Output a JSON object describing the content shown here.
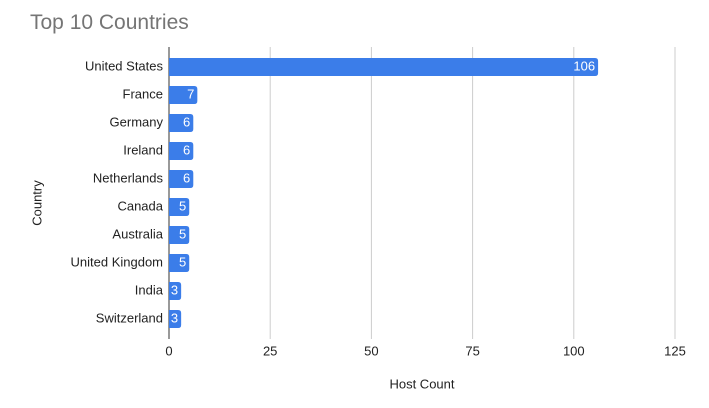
{
  "chart_data": {
    "type": "hbar",
    "title": "Top 10 Countries",
    "x_label": "Host Count",
    "y_label": "Country",
    "categories": [
      "United States",
      "France",
      "Germany",
      "Ireland",
      "Netherlands",
      "Canada",
      "Australia",
      "United Kingdom",
      "India",
      "Switzerland"
    ],
    "values": [
      106,
      7,
      6,
      6,
      6,
      5,
      5,
      5,
      3,
      3
    ],
    "color": "#3b7de9",
    "xlim": [
      0,
      125
    ],
    "xticks": [
      0,
      25,
      50,
      75,
      100,
      125
    ],
    "grid": true
  }
}
